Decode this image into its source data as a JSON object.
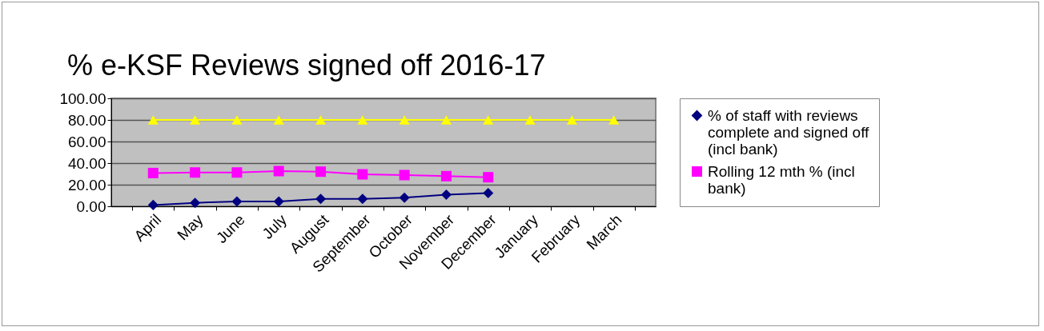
{
  "chart_data": {
    "type": "line",
    "title": "% e-KSF Reviews signed off 2016-17",
    "categories": [
      "April",
      "May",
      "June",
      "July",
      "August",
      "September",
      "October",
      "November",
      "December",
      "January",
      "February",
      "March"
    ],
    "series": [
      {
        "name": "% of staff with reviews complete and signed off (incl bank)",
        "color": "#000080",
        "marker": "diamond",
        "values": [
          1.2,
          3.2,
          4.4,
          4.4,
          6.9,
          6.9,
          7.9,
          10.8,
          12.3,
          null,
          null,
          null
        ]
      },
      {
        "name": "Rolling 12 mth % (incl bank)",
        "color": "#ff00ff",
        "marker": "square",
        "values": [
          30.8,
          31.3,
          31.3,
          32.6,
          32.1,
          29.6,
          28.9,
          27.9,
          26.9,
          null,
          null,
          null
        ]
      },
      {
        "color": "#ffff00",
        "marker": "triangle",
        "values": [
          80,
          80,
          80,
          80,
          80,
          80,
          80,
          80,
          80,
          80,
          80,
          80
        ]
      }
    ],
    "ylim": [
      0,
      100
    ],
    "yticks": [
      {
        "value": 0,
        "label": "0.00"
      },
      {
        "value": 20,
        "label": "20.00"
      },
      {
        "value": 40,
        "label": "40.00"
      },
      {
        "value": 60,
        "label": "60.00"
      },
      {
        "value": 80,
        "label": "80.00"
      },
      {
        "value": 100,
        "label": "100.00"
      }
    ],
    "grid": "y",
    "legend": "right"
  }
}
